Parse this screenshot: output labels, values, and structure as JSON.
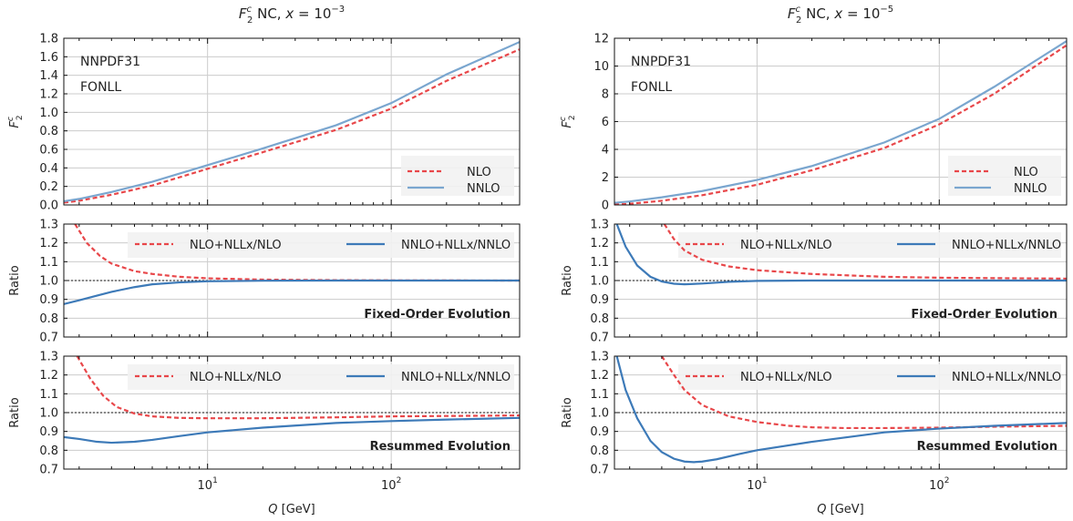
{
  "xlabel": "Q [GeV]",
  "xlabel_var": "Q",
  "xlabel_unit": "[GeV]",
  "x_ticklabels": [
    {
      "base": "10",
      "exp": "1",
      "value": 10
    },
    {
      "base": "10",
      "exp": "2",
      "value": 100
    }
  ],
  "colors": {
    "nlo": "#e8474a",
    "nnlo_top": "#7aa6cf",
    "nnlo_ratio": "#3d7ab8",
    "grid": "#cccccc"
  },
  "chart_data": [
    {
      "type": "line",
      "title": "F2c NC, x = 10^-3",
      "title_parts": {
        "func": "F",
        "sub": "2",
        "sup": "c",
        "rest": " NC, ",
        "xvar": "x",
        "eq": " = 10",
        "exp": "−3"
      },
      "xscale": "log",
      "xlim": [
        1.65,
        500
      ],
      "panels": [
        {
          "id": "top",
          "ylabel": "F2c",
          "ylim": [
            0,
            1.8
          ],
          "yticks": [
            "0.0",
            "0.2",
            "0.4",
            "0.6",
            "0.8",
            "1.0",
            "1.2",
            "1.4",
            "1.6",
            "1.8"
          ],
          "yvals": [
            0,
            0.2,
            0.4,
            0.6,
            0.8,
            1.0,
            1.2,
            1.4,
            1.6,
            1.8
          ],
          "annotations": [
            "NNPDF31",
            "FONLL"
          ],
          "legend": [
            "NLO",
            "NNLO"
          ],
          "legend_position": "lower-right",
          "series": [
            {
              "name": "NLO",
              "style": "dashed",
              "x": [
                1.65,
                2,
                3,
                5,
                10,
                20,
                50,
                100,
                200,
                500
              ],
              "y": [
                0.025,
                0.045,
                0.11,
                0.21,
                0.39,
                0.57,
                0.81,
                1.04,
                1.34,
                1.68
              ]
            },
            {
              "name": "NNLO",
              "style": "solid",
              "x": [
                1.65,
                2,
                3,
                5,
                10,
                20,
                50,
                100,
                200,
                500
              ],
              "y": [
                0.04,
                0.065,
                0.14,
                0.25,
                0.43,
                0.61,
                0.86,
                1.1,
                1.41,
                1.76
              ]
            }
          ]
        },
        {
          "id": "mid",
          "ylabel": "Ratio",
          "ylim": [
            0.7,
            1.3
          ],
          "yticks": [
            "0.7",
            "0.8",
            "0.9",
            "1.0",
            "1.1",
            "1.2",
            "1.3"
          ],
          "yvals": [
            0.7,
            0.8,
            0.9,
            1.0,
            1.1,
            1.2,
            1.3
          ],
          "reference_line": 1.0,
          "label": "Fixed-Order Evolution",
          "legend": [
            "NLO+NLLx/NLO",
            "NNLO+NLLx/NNLO"
          ],
          "legend_position": "top",
          "series": [
            {
              "name": "NLO+NLLx/NLO",
              "style": "dashed",
              "x": [
                1.9,
                2.2,
                2.6,
                3,
                4,
                5,
                7,
                10,
                20,
                50,
                100,
                500
              ],
              "y": [
                1.3,
                1.2,
                1.13,
                1.09,
                1.05,
                1.035,
                1.02,
                1.012,
                1.005,
                1.002,
                1.001,
                1.0
              ]
            },
            {
              "name": "NNLO+NLLx/NNLO",
              "style": "solid",
              "x": [
                1.65,
                2,
                2.5,
                3,
                4,
                5,
                7,
                10,
                20,
                50,
                100,
                500
              ],
              "y": [
                0.875,
                0.895,
                0.92,
                0.94,
                0.965,
                0.98,
                0.99,
                0.996,
                0.999,
                1.0,
                1.0,
                1.0
              ]
            }
          ]
        },
        {
          "id": "bot",
          "ylabel": "Ratio",
          "ylim": [
            0.7,
            1.3
          ],
          "yticks": [
            "0.7",
            "0.8",
            "0.9",
            "1.0",
            "1.1",
            "1.2",
            "1.3"
          ],
          "yvals": [
            0.7,
            0.8,
            0.9,
            1.0,
            1.1,
            1.2,
            1.3
          ],
          "reference_line": 1.0,
          "label": "Resummed Evolution",
          "legend": [
            "NLO+NLLx/NLO",
            "NNLO+NLLx/NNLO"
          ],
          "legend_position": "top",
          "series": [
            {
              "name": "NLO+NLLx/NLO",
              "style": "dashed",
              "x": [
                1.95,
                2.3,
                2.7,
                3.2,
                4,
                5,
                7,
                10,
                20,
                50,
                100,
                500
              ],
              "y": [
                1.3,
                1.18,
                1.09,
                1.03,
                0.995,
                0.98,
                0.972,
                0.97,
                0.97,
                0.975,
                0.98,
                0.985
              ]
            },
            {
              "name": "NNLO+NLLx/NNLO",
              "style": "solid",
              "x": [
                1.65,
                2,
                2.5,
                3,
                4,
                5,
                7,
                10,
                20,
                50,
                100,
                200,
                500
              ],
              "y": [
                0.87,
                0.86,
                0.845,
                0.84,
                0.845,
                0.855,
                0.875,
                0.895,
                0.92,
                0.945,
                0.955,
                0.963,
                0.972
              ]
            }
          ]
        }
      ]
    },
    {
      "type": "line",
      "title": "F2c NC, x = 10^-5",
      "title_parts": {
        "func": "F",
        "sub": "2",
        "sup": "c",
        "rest": " NC, ",
        "xvar": "x",
        "eq": " = 10",
        "exp": "−5"
      },
      "xscale": "log",
      "xlim": [
        1.65,
        500
      ],
      "panels": [
        {
          "id": "top",
          "ylabel": "F2c",
          "ylim": [
            0,
            12
          ],
          "yticks": [
            "0",
            "2",
            "4",
            "6",
            "8",
            "10",
            "12"
          ],
          "yvals": [
            0,
            2,
            4,
            6,
            8,
            10,
            12
          ],
          "annotations": [
            "NNPDF31",
            "FONLL"
          ],
          "legend": [
            "NLO",
            "NNLO"
          ],
          "legend_position": "lower-right",
          "series": [
            {
              "name": "NLO",
              "style": "dashed",
              "x": [
                1.65,
                2,
                3,
                5,
                10,
                20,
                50,
                100,
                200,
                500
              ],
              "y": [
                0.03,
                0.08,
                0.3,
                0.7,
                1.45,
                2.5,
                4.1,
                5.8,
                8.0,
                11.5
              ]
            },
            {
              "name": "NNLO",
              "style": "solid",
              "x": [
                1.65,
                2,
                3,
                5,
                10,
                20,
                50,
                100,
                200,
                500
              ],
              "y": [
                0.15,
                0.25,
                0.55,
                1.0,
                1.8,
                2.8,
                4.5,
                6.2,
                8.5,
                11.8
              ]
            }
          ]
        },
        {
          "id": "mid",
          "ylabel": "Ratio",
          "ylim": [
            0.7,
            1.3
          ],
          "yticks": [
            "0.7",
            "0.8",
            "0.9",
            "1.0",
            "1.1",
            "1.2",
            "1.3"
          ],
          "yvals": [
            0.7,
            0.8,
            0.9,
            1.0,
            1.1,
            1.2,
            1.3
          ],
          "reference_line": 1.0,
          "label": "Fixed-Order Evolution",
          "legend": [
            "NLO+NLLx/NLO",
            "NNLO+NLLx/NNLO"
          ],
          "legend_position": "top",
          "series": [
            {
              "name": "NLO+NLLx/NLO",
              "style": "dashed",
              "x": [
                3.1,
                3.5,
                4,
                5,
                7,
                10,
                20,
                50,
                100,
                500
              ],
              "y": [
                1.3,
                1.22,
                1.16,
                1.11,
                1.075,
                1.055,
                1.035,
                1.02,
                1.015,
                1.01
              ]
            },
            {
              "name": "NNLO+NLLx/NNLO",
              "style": "solid",
              "x": [
                1.7,
                1.9,
                2.2,
                2.6,
                3,
                3.5,
                4,
                5,
                7,
                10,
                20,
                100,
                500
              ],
              "y": [
                1.3,
                1.18,
                1.08,
                1.02,
                0.995,
                0.983,
                0.98,
                0.984,
                0.993,
                0.998,
                1.0,
                1.0,
                1.0
              ]
            }
          ]
        },
        {
          "id": "bot",
          "ylabel": "Ratio",
          "ylim": [
            0.7,
            1.3
          ],
          "yticks": [
            "0.7",
            "0.8",
            "0.9",
            "1.0",
            "1.1",
            "1.2",
            "1.3"
          ],
          "yvals": [
            0.7,
            0.8,
            0.9,
            1.0,
            1.1,
            1.2,
            1.3
          ],
          "reference_line": 1.0,
          "label": "Resummed Evolution",
          "legend": [
            "NLO+NLLx/NLO",
            "NNLO+NLLx/NNLO"
          ],
          "legend_position": "top",
          "series": [
            {
              "name": "NLO+NLLx/NLO",
              "style": "dashed",
              "x": [
                3.0,
                3.5,
                4,
                5,
                7,
                10,
                15,
                20,
                30,
                50,
                100,
                200,
                500
              ],
              "y": [
                1.3,
                1.2,
                1.12,
                1.04,
                0.98,
                0.95,
                0.93,
                0.922,
                0.918,
                0.918,
                0.92,
                0.925,
                0.93
              ]
            },
            {
              "name": "NNLO+NLLx/NNLO",
              "style": "solid",
              "x": [
                1.7,
                1.9,
                2.2,
                2.6,
                3,
                3.5,
                4,
                4.5,
                5,
                6,
                8,
                10,
                20,
                50,
                100,
                200,
                500
              ],
              "y": [
                1.3,
                1.12,
                0.97,
                0.85,
                0.79,
                0.755,
                0.74,
                0.737,
                0.74,
                0.752,
                0.78,
                0.8,
                0.845,
                0.895,
                0.915,
                0.93,
                0.945
              ]
            }
          ]
        }
      ]
    }
  ]
}
